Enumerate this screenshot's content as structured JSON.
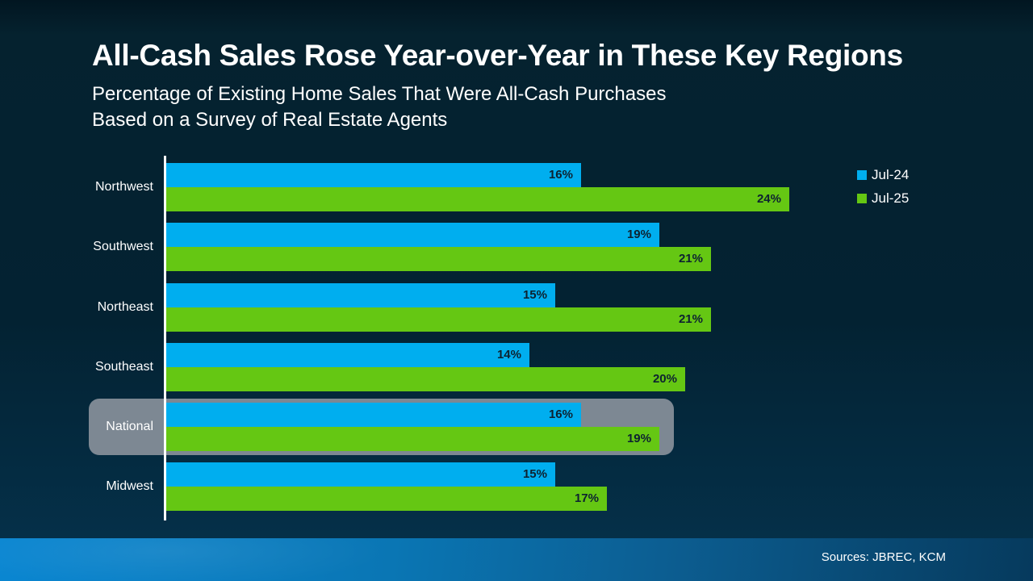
{
  "header": {
    "title": "All-Cash Sales Rose Year-over-Year in These Key Regions",
    "subtitle_line1": "Percentage of Existing Home Sales That Were All-Cash Purchases",
    "subtitle_line2": "Based on a Survey of Real Estate Agents"
  },
  "chart_data": {
    "type": "bar",
    "orientation": "horizontal",
    "categories": [
      "Northwest",
      "Southwest",
      "Northeast",
      "Southeast",
      "National",
      "Midwest"
    ],
    "series": [
      {
        "name": "Jul-24",
        "color": "#00aeef",
        "values": [
          16,
          19,
          15,
          14,
          16,
          15
        ]
      },
      {
        "name": "Jul-25",
        "color": "#65c713",
        "values": [
          24,
          21,
          21,
          20,
          19,
          17
        ]
      }
    ],
    "value_suffix": "%",
    "value_label_color": "#0d2230",
    "highlighted_category": "National",
    "highlight_color": "#7d8893",
    "xlim": [
      0,
      26
    ],
    "grid": false,
    "legend_position": "top-right"
  },
  "footer": {
    "sources": "Sources: JBREC, KCM"
  },
  "colors": {
    "background_top": "#05222f",
    "background_bottom": "#053049",
    "axis_line": "#ffffff",
    "footer_gradient_left": "#0a86d1",
    "footer_gradient_right": "#063a5d"
  }
}
